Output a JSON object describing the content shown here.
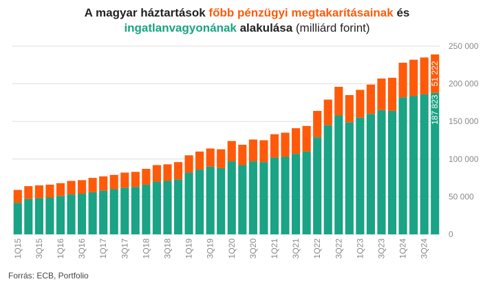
{
  "title": {
    "part1": "A magyar háztartások ",
    "part2": "főbb pénzügyi megtakarításainak",
    "part3": " és",
    "part4": "ingatlanvagyonának",
    "part5": " alakulása",
    "part6": " (milliárd forint)"
  },
  "source": "Forrás: ECB, Portfolio",
  "colors": {
    "financial": "#ff5a0a",
    "real_estate": "#1aa384",
    "grid": "#dddddd",
    "axis_text": "#888888"
  },
  "chart_data": {
    "type": "bar",
    "stacked": true,
    "categories": [
      "1Q15",
      "2Q15",
      "3Q15",
      "4Q15",
      "1Q16",
      "2Q16",
      "3Q16",
      "4Q16",
      "1Q17",
      "2Q17",
      "3Q17",
      "4Q17",
      "1Q18",
      "2Q18",
      "3Q18",
      "4Q18",
      "1Q19",
      "2Q19",
      "3Q19",
      "4Q19",
      "1Q20",
      "2Q20",
      "3Q20",
      "4Q20",
      "1Q21",
      "2Q21",
      "3Q21",
      "4Q21",
      "1Q22",
      "2Q22",
      "3Q22",
      "4Q22",
      "1Q23",
      "2Q23",
      "3Q23",
      "4Q23",
      "1Q24",
      "2Q24",
      "3Q24",
      "4Q24"
    ],
    "tick_labels": [
      "1Q15",
      "3Q15",
      "1Q16",
      "3Q16",
      "1Q17",
      "3Q17",
      "1Q18",
      "3Q18",
      "1Q19",
      "3Q19",
      "1Q20",
      "3Q20",
      "1Q21",
      "3Q21",
      "1Q22",
      "3Q22",
      "1Q23",
      "3Q23",
      "1Q24",
      "3Q24"
    ],
    "series": [
      {
        "values": [
          42000,
          47000,
          48000,
          49000,
          51000,
          53000,
          54000,
          56000,
          58000,
          60000,
          62000,
          63000,
          66000,
          70000,
          71000,
          73000,
          82000,
          86000,
          90000,
          88000,
          97000,
          92000,
          97000,
          96000,
          102000,
          103000,
          107000,
          110000,
          129000,
          145000,
          158000,
          149000,
          155000,
          160000,
          165000,
          164000,
          182000,
          184000,
          186000,
          187823
        ]
      },
      {
        "values": [
          17000,
          17000,
          17000,
          17000,
          17000,
          18000,
          18000,
          19000,
          19000,
          19000,
          20000,
          20000,
          21000,
          22000,
          22000,
          23000,
          23000,
          24000,
          24000,
          25000,
          27000,
          27000,
          29000,
          29000,
          31000,
          32000,
          34000,
          34000,
          35000,
          34000,
          38000,
          36000,
          37000,
          39000,
          42000,
          44000,
          46000,
          48000,
          49000,
          51222
        ]
      }
    ],
    "ylim": [
      0,
      250000
    ],
    "yticks": [
      0,
      50000,
      100000,
      150000,
      200000,
      250000
    ],
    "ytick_labels": [
      "0",
      "50 000",
      "100 000",
      "150 000",
      "200 000",
      "250 000"
    ],
    "data_labels": {
      "real_estate_last": "187 823",
      "financial_last": "51 222"
    },
    "grid": true
  }
}
